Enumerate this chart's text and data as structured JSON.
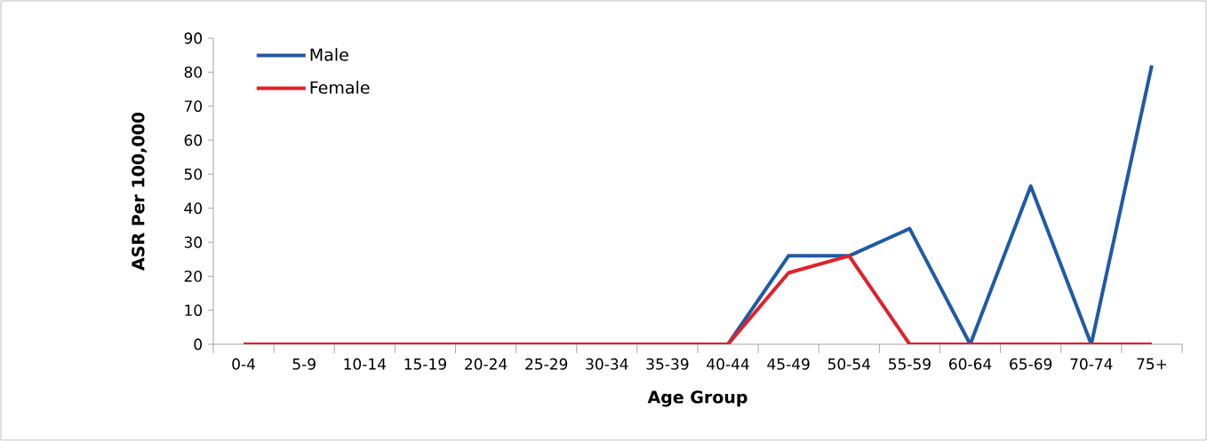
{
  "chart_data": {
    "type": "line",
    "xlabel": "Age Group",
    "ylabel": "ASR Per 100,000",
    "categories": [
      "0-4",
      "5-9",
      "10-14",
      "15-19",
      "20-24",
      "25-29",
      "30-34",
      "35-39",
      "40-44",
      "45-49",
      "50-54",
      "55-59",
      "60-64",
      "65-69",
      "70-74",
      "75+"
    ],
    "series": [
      {
        "name": "Male",
        "color": "#1f5aa6",
        "values": [
          null,
          null,
          null,
          null,
          null,
          null,
          null,
          0,
          0,
          26,
          26,
          34,
          0,
          46.5,
          0,
          82
        ]
      },
      {
        "name": "Female",
        "color": "#e1202a",
        "values": [
          0,
          0,
          0,
          0,
          0,
          0,
          0,
          0,
          0,
          21,
          26,
          0,
          0,
          0,
          0,
          0
        ]
      }
    ],
    "ylim": [
      0,
      90
    ],
    "yticks": [
      0,
      10,
      20,
      30,
      40,
      50,
      60,
      70,
      80,
      90
    ],
    "grid": false,
    "legend": "top left",
    "marker": "none",
    "line_style": "solid"
  }
}
